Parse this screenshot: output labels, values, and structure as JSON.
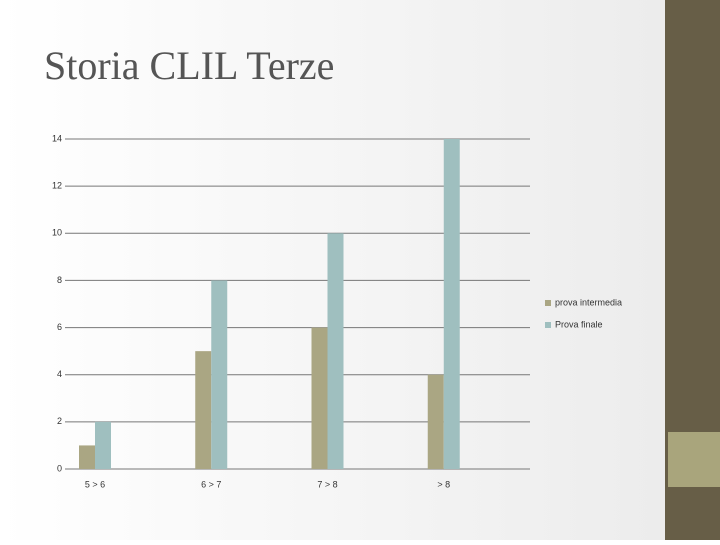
{
  "chart_data": {
    "type": "bar",
    "title": "Storia CLIL Terze",
    "categories": [
      "5 > 6",
      "6 > 7",
      "7 > 8",
      "> 8"
    ],
    "series": [
      {
        "name": "prova intermedia",
        "color": "#aaa683",
        "values": [
          1,
          5,
          6,
          4
        ]
      },
      {
        "name": "Prova finale",
        "color": "#9fbfbf",
        "values": [
          2,
          8,
          10,
          14
        ]
      }
    ],
    "ylim": [
      0,
      14
    ],
    "yticks": [
      0,
      2,
      4,
      6,
      8,
      10,
      12,
      14
    ],
    "grid": true,
    "legend": "right"
  }
}
